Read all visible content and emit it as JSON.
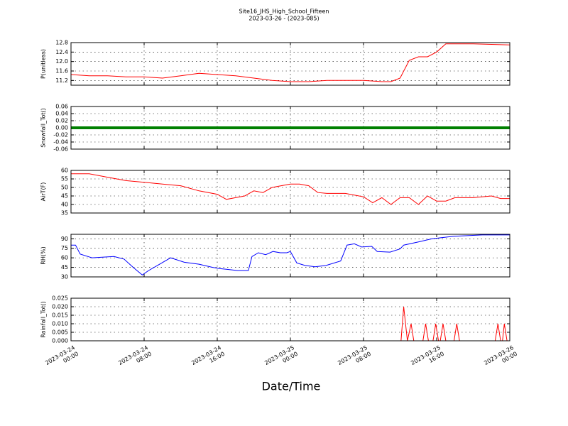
{
  "title": "Site16_JHS_High_School_Fifteen",
  "subtitle": "2023-03-26 - (2023-085)",
  "xlabel": "Date/Time",
  "xlim": [
    0,
    48
  ],
  "xticks": [
    {
      "value": 0,
      "label": "2023-03-24\n00:00"
    },
    {
      "value": 8,
      "label": "2023-03-24\n08:00"
    },
    {
      "value": 16,
      "label": "2023-03-24\n16:00"
    },
    {
      "value": 24,
      "label": "2023-03-25\n00:00"
    },
    {
      "value": 32,
      "label": "2023-03-25\n08:00"
    },
    {
      "value": 40,
      "label": "2023-03-25\n16:00"
    },
    {
      "value": 48,
      "label": "2023-03-26\n00:00"
    }
  ],
  "chart_data": [
    {
      "type": "line",
      "ylabel": "P(unitless)",
      "ylim": [
        11.0,
        12.8
      ],
      "grid": true,
      "yticks": [
        11.2,
        11.6,
        {
          "value": 12.0,
          "label": "12.0"
        },
        12.4,
        12.8
      ],
      "series": [
        {
          "color": "#ff0000",
          "x": [
            0,
            2,
            4,
            6,
            8,
            10,
            12,
            14,
            16,
            18,
            20,
            22,
            24,
            26,
            28,
            30,
            32,
            34,
            35,
            36,
            37,
            38,
            39,
            40,
            41,
            44,
            48
          ],
          "values": [
            11.45,
            11.4,
            11.4,
            11.35,
            11.35,
            11.3,
            11.4,
            11.5,
            11.45,
            11.4,
            11.3,
            11.2,
            11.15,
            11.15,
            11.2,
            11.2,
            11.2,
            11.15,
            11.15,
            11.3,
            12.05,
            12.2,
            12.2,
            12.4,
            12.75,
            12.75,
            12.7
          ]
        }
      ]
    },
    {
      "type": "line",
      "ylabel": "Snowfall_Tot()",
      "ylim": [
        -0.06,
        0.06
      ],
      "grid": true,
      "markers": true,
      "yticks": [
        -0.06,
        -0.04,
        -0.02,
        {
          "value": 0,
          "label": "0.00"
        },
        0.02,
        0.04,
        0.06
      ],
      "series": [
        {
          "color": "#008000",
          "x": [
            0,
            2,
            4,
            6,
            8,
            10,
            12,
            14,
            16,
            18,
            20,
            22,
            24,
            26,
            28,
            30,
            32,
            34,
            36,
            38,
            40,
            42,
            44,
            46,
            48
          ],
          "values": [
            0,
            0,
            0,
            0,
            0,
            0,
            0,
            0,
            0,
            0,
            0,
            0,
            0,
            0,
            0,
            0,
            0,
            0,
            0,
            0,
            0,
            0,
            0,
            0,
            0
          ]
        }
      ]
    },
    {
      "type": "line",
      "ylabel": "AirT(F)",
      "ylim": [
        35,
        60
      ],
      "grid": true,
      "yticks": [
        35,
        40,
        45,
        50,
        55,
        60
      ],
      "series": [
        {
          "color": "#ff0000",
          "x": [
            0,
            2,
            4,
            6,
            8,
            10,
            12,
            14,
            16,
            17,
            18,
            19,
            20,
            21,
            22,
            23,
            24,
            25,
            26,
            27,
            28,
            30,
            32,
            33,
            34,
            35,
            36,
            37,
            38,
            39,
            40,
            41,
            42,
            44,
            46,
            47,
            48
          ],
          "values": [
            58,
            58,
            56,
            54,
            53,
            52,
            51,
            48,
            46,
            43,
            44,
            45,
            48,
            47,
            50,
            51,
            52,
            52,
            51,
            47,
            46.5,
            46.5,
            44.5,
            41,
            44,
            40,
            44,
            44,
            40,
            45,
            42,
            42,
            44,
            44,
            45,
            43.5,
            43.5
          ]
        }
      ]
    },
    {
      "type": "line",
      "ylabel": "RH(%)",
      "ylim": [
        30,
        97
      ],
      "grid": true,
      "yticks": [
        30,
        45,
        60,
        75,
        90
      ],
      "series": [
        {
          "color": "#0000ff",
          "x": [
            0,
            0.5,
            1,
            2.3,
            4.7,
            5.8,
            6.8,
            7.8,
            8.5,
            9.7,
            10.9,
            12.4,
            14,
            15.5,
            16.3,
            17,
            18.2,
            19.4,
            19.8,
            20.5,
            21.3,
            22.1,
            22.9,
            23.6,
            24,
            24.7,
            25.6,
            26.7,
            27.9,
            29.5,
            30.2,
            31,
            31.8,
            32.9,
            33.5,
            34.9,
            36,
            36.4,
            38,
            39.5,
            41.9,
            45,
            48
          ],
          "values": [
            80,
            80,
            66,
            60,
            62,
            58,
            45,
            33,
            40,
            50,
            60,
            53,
            50,
            45,
            43,
            42,
            40,
            40,
            62,
            68,
            65,
            70,
            68,
            68,
            70,
            52,
            48,
            46,
            48,
            55,
            80,
            82,
            77,
            78,
            70,
            69,
            74,
            80,
            85,
            90,
            94,
            96,
            96
          ]
        }
      ]
    },
    {
      "type": "line",
      "ylabel": "Rainfall_Tot()",
      "ylim": [
        0,
        0.025
      ],
      "grid": true,
      "yticks": [
        {
          "value": 0,
          "label": "0.000"
        },
        {
          "value": 0.005,
          "label": "0.005"
        },
        {
          "value": 0.01,
          "label": "0.010"
        },
        {
          "value": 0.015,
          "label": "0.015"
        },
        {
          "value": 0.02,
          "label": "0.020"
        },
        {
          "value": 0.025,
          "label": "0.025"
        }
      ],
      "series": [
        {
          "color": "#ff0000",
          "x": [
            0,
            36.1,
            36.4,
            36.8,
            37.2,
            37.5,
            38.5,
            38.8,
            39.1,
            39.6,
            39.9,
            40.2,
            40.4,
            40.7,
            41.0,
            41.9,
            42.2,
            42.5,
            46.4,
            46.7,
            47.0,
            47.2,
            47.4,
            47.7,
            48
          ],
          "values": [
            0,
            0,
            0.02,
            0,
            0.01,
            0,
            0,
            0.01,
            0,
            0,
            0.01,
            0,
            0,
            0.01,
            0,
            0,
            0.01,
            0,
            0,
            0.01,
            0,
            0,
            0.01,
            0,
            0
          ]
        }
      ]
    }
  ]
}
